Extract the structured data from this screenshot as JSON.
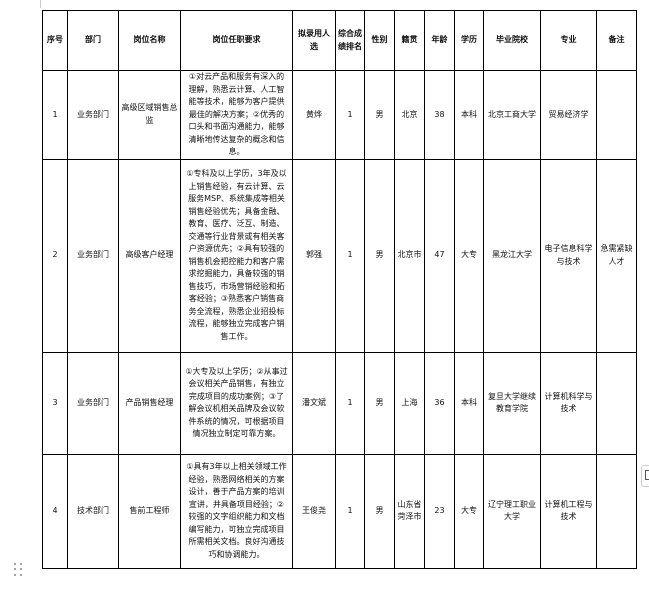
{
  "headers": [
    "序号",
    "部门",
    "岗位名称",
    "岗位任职要求",
    "拟录用人选",
    "综合成绩排名",
    "性别",
    "籍贯",
    "年龄",
    "学历",
    "毕业院校",
    "专业",
    "备注"
  ],
  "rows": [
    {
      "no": "1",
      "dept": "业务部门",
      "position": "高级区域销售总监",
      "requirements": "①对云产品和服务有深入的理解，熟悉云计算、人工智能等技术，能够为客户提供最佳的解决方案；②优秀的口头和书面沟通能力，能够清晰地传达复杂的概念和信息。",
      "candidate": "黄烨",
      "rank": "1",
      "gender": "男",
      "origin": "北京",
      "age": "38",
      "education": "本科",
      "school": "北京工商大学",
      "major": "贸易经济学",
      "note": ""
    },
    {
      "no": "2",
      "dept": "业务部门",
      "position": "高级客户经理",
      "requirements": "①专科及以上学历，3年及以上销售经验，有云计算、云服务MSP、系统集成等相关销售经验优先；具备金融、教育、医疗、泛互、制造、交通等行业背景或有相关客户资源优先；②具有较强的销售机会把控能力和客户需求挖掘能力，具备较强的销售技巧，市场营销经验和拓客经验；③熟悉客户销售商务全流程，熟悉企业招投标流程，能够独立完成客户销售工作。",
      "candidate": "郭强",
      "rank": "1",
      "gender": "男",
      "origin": "北京市",
      "age": "47",
      "education": "大专",
      "school": "黑龙江大学",
      "major": "电子信息科学与技术",
      "note": "急需紧缺人才"
    },
    {
      "no": "3",
      "dept": "业务部门",
      "position": "产品销售经理",
      "requirements": "①大专及以上学历；②从事过会议相关产品销售，有独立完成项目的成功案例；③了解会议机相关品牌及会议软件系统的情况，可根据项目情况独立制定可靠方案。",
      "candidate": "潘文斌",
      "rank": "1",
      "gender": "男",
      "origin": "上海",
      "age": "36",
      "education": "本科",
      "school": "复旦大学继续教育学院",
      "major": "计算机科学与技术",
      "note": ""
    },
    {
      "no": "4",
      "dept": "技术部门",
      "position": "售前工程师",
      "requirements": "①具有3年以上相关领域工作经验，熟悉网络相关的方案设计，善于产品方案的培训宣讲，并具备项目经验；②较强的文字组织能力和文档编写能力，可独立完成项目所需相关文档。良好沟通技巧和协调能力。",
      "candidate": "王俊尧",
      "rank": "1",
      "gender": "男",
      "origin": "山东省菏泽市",
      "age": "23",
      "education": "大专",
      "school": "辽宁理工职业大学",
      "major": "计算机工程与技术",
      "note": ""
    }
  ]
}
